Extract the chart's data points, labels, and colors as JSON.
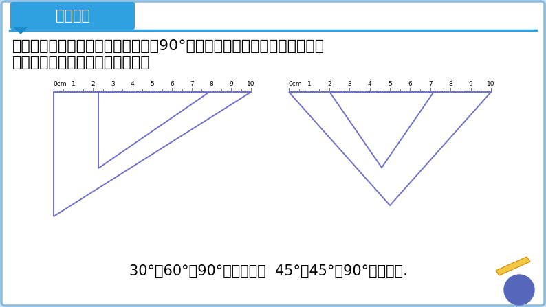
{
  "bg_color": "#cce0f5",
  "slide_bg": "#ffffff",
  "title_text": "自学导航",
  "title_bg": "#2fa0e0",
  "title_text_color": "white",
  "header_bar_color": "#2fa0e0",
  "body_text_line1": "在一副三角板中，每块都有一个角是90°，那么另外两个锐角之和是多少度",
  "body_text_line2": "呢？这两个锐角之间有什么关系？",
  "triangle_color": "#7070c8",
  "formula_text": "30°＋60°＝90°（互余），  45°＋45°＝90°（互余）.",
  "formula_fontsize": 15,
  "body_fontsize": 16,
  "title_fontsize": 15
}
